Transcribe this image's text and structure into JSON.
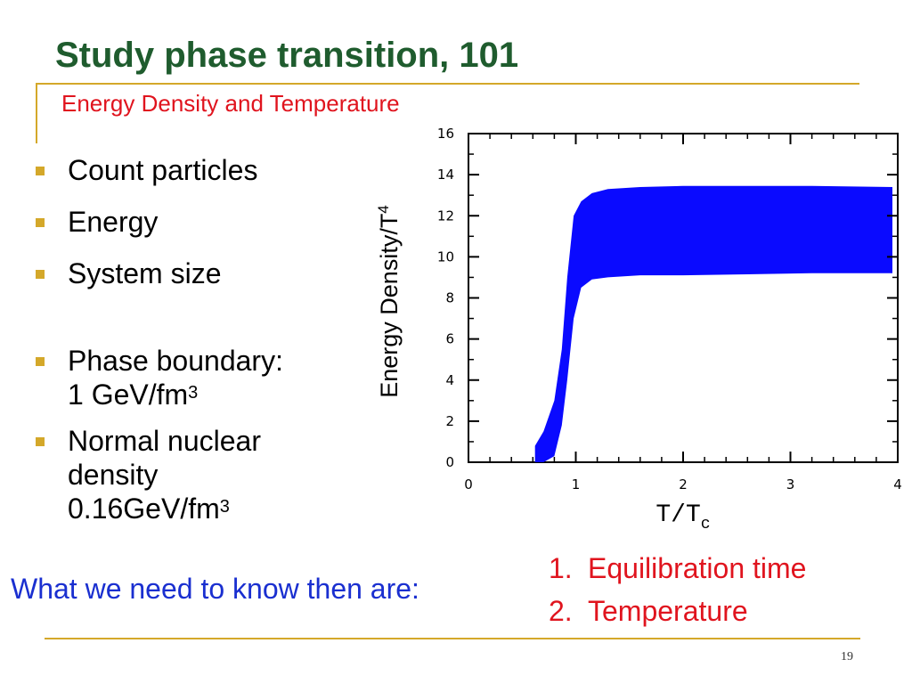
{
  "slide": {
    "title": "Study phase transition, 101",
    "subtitle": "Energy Density and Temperature",
    "page_number": "19"
  },
  "bullets": {
    "count_particles": "Count particles",
    "energy": "Energy",
    "system_size": "System size",
    "phase_boundary_line1": "Phase boundary:",
    "phase_boundary_line2": "1 GeV/fm",
    "phase_boundary_exp": "3",
    "normal_line1": "Normal nuclear",
    "normal_line2": "density",
    "normal_line3": "0.16GeV/fm",
    "normal_exp": "3"
  },
  "footer": {
    "need_text": "What we need to know then are:",
    "steps": [
      {
        "num": "1.",
        "label": "Equilibration time"
      },
      {
        "num": "2.",
        "label": "Temperature"
      }
    ]
  },
  "colors": {
    "title": "#1f5c2e",
    "accent_red": "#e0141e",
    "accent_blue": "#1a2fd0",
    "rule_gold": "#d4a82a",
    "band": "#0a0aff"
  },
  "chart_data": {
    "type": "area",
    "ylabel": "Energy Density/T",
    "ylabel_exp": "4",
    "xlabel": "T/T",
    "xlabel_sub": "c",
    "xlim": [
      0,
      4
    ],
    "ylim": [
      0,
      16
    ],
    "x_ticks": [
      "0",
      "1",
      "2",
      "3",
      "4"
    ],
    "y_ticks": [
      "0",
      "2",
      "4",
      "6",
      "8",
      "10",
      "12",
      "14",
      "16"
    ],
    "band": {
      "x": [
        0.62,
        0.7,
        0.8,
        0.87,
        0.92,
        0.98,
        1.05,
        1.15,
        1.3,
        1.6,
        2.0,
        2.6,
        3.2,
        3.95
      ],
      "upper": [
        0.8,
        1.5,
        3.0,
        5.5,
        9.0,
        12.0,
        12.7,
        13.1,
        13.3,
        13.4,
        13.45,
        13.45,
        13.45,
        13.4
      ],
      "lower": [
        0.0,
        0.0,
        0.3,
        1.8,
        4.0,
        7.0,
        8.5,
        8.9,
        9.0,
        9.1,
        9.1,
        9.15,
        9.2,
        9.2
      ]
    }
  }
}
